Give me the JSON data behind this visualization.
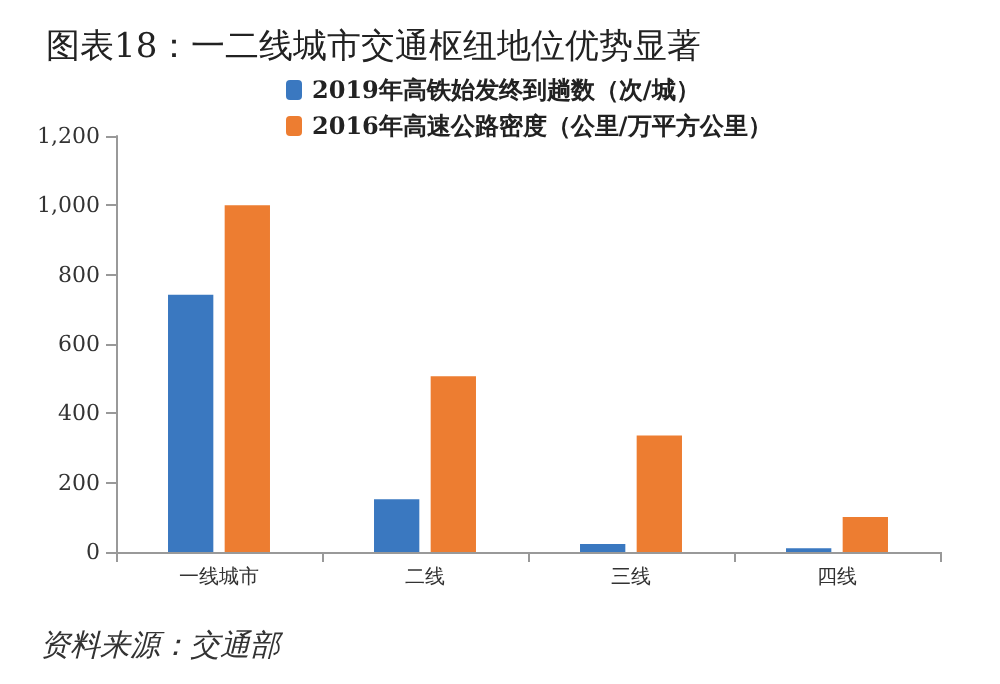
{
  "chart_data": {
    "type": "bar",
    "title": "图表18：一二线城市交通枢纽地位优势显著",
    "categories": [
      "一线城市",
      "二线",
      "三线",
      "四线"
    ],
    "series": [
      {
        "name": "2019年高铁始发终到趟数（次/城）",
        "color": "#3a78c0",
        "values": [
          742,
          152,
          23,
          11
        ]
      },
      {
        "name": "2016年高速公路密度（公里/万平方公里）",
        "color": "#ed7d31",
        "values": [
          1000,
          507,
          336,
          101
        ]
      }
    ],
    "ylim": [
      0,
      1200
    ],
    "yticks": [
      {
        "value": 0,
        "label": "0"
      },
      {
        "value": 200,
        "label": "200"
      },
      {
        "value": 400,
        "label": "400"
      },
      {
        "value": 600,
        "label": "600"
      },
      {
        "value": 800,
        "label": "800"
      },
      {
        "value": 1000,
        "label": "1,000"
      },
      {
        "value": 1200,
        "label": "1,200"
      }
    ],
    "legend": "top",
    "grid": false,
    "annotations": [
      "资料来源：交通部"
    ]
  }
}
